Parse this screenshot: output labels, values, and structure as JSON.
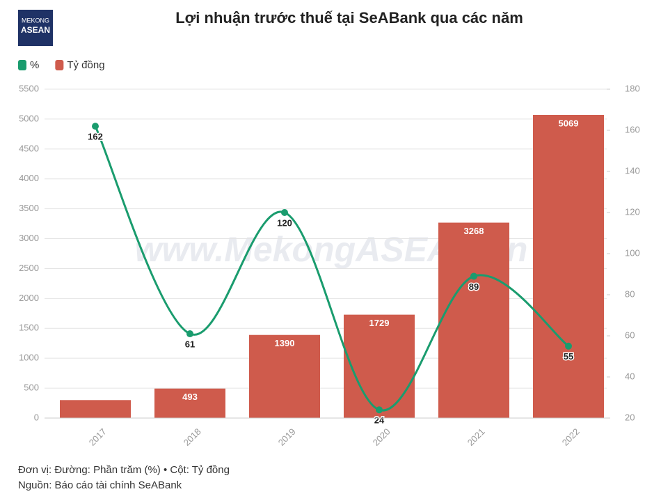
{
  "logo": {
    "line1": "MEKONG",
    "line2": "ASEAN"
  },
  "watermark": "www.MekongASEAN.vn",
  "footer": {
    "unit": "Đơn vị: Đường: Phần trăm (%) • Cột: Tỷ đồng",
    "source": "Nguồn: Báo cáo tài chính SeABank"
  },
  "chart_data": {
    "type": "bar-line",
    "title": "Lợi nhuận trước thuế tại SeABank qua các năm",
    "categories": [
      "2017",
      "2018",
      "2019",
      "2020",
      "2021",
      "2022"
    ],
    "series": [
      {
        "name": "%",
        "type": "line",
        "axis": "y2",
        "color": "#1a9c6e",
        "values": [
          162,
          61,
          120,
          24,
          89,
          55
        ]
      },
      {
        "name": "Tỷ đồng",
        "type": "bar",
        "color": "#cf5b4c",
        "values": [
          300,
          493,
          1390,
          1729,
          3268,
          5069
        ],
        "value_labels": [
          null,
          "493",
          "1390",
          "1729",
          "3268",
          "5069"
        ]
      }
    ],
    "ylim": [
      0,
      5500
    ],
    "yticks": [
      0,
      500,
      1000,
      1500,
      2000,
      2500,
      3000,
      3500,
      4000,
      4500,
      5000,
      5500
    ],
    "y2lim": [
      20,
      180
    ],
    "y2ticks": [
      20,
      40,
      60,
      80,
      100,
      120,
      140,
      160,
      180
    ],
    "grid": true,
    "legend": "top-left"
  }
}
